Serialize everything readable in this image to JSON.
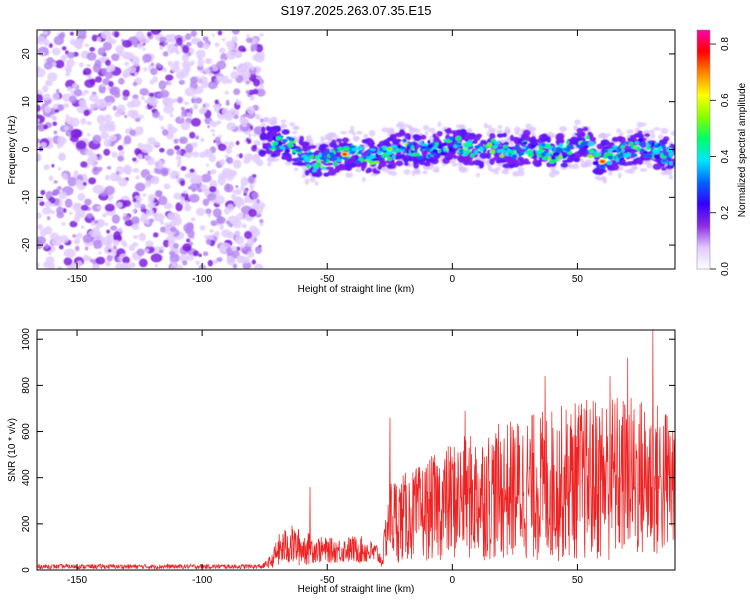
{
  "title": "S197.2025.263.07.35.E15",
  "chart_data": [
    {
      "type": "heatmap",
      "xlabel": "Height of straight line (km)",
      "ylabel": "Frequency (Hz)",
      "xlim": [
        -166,
        89
      ],
      "ylim": [
        -25,
        25
      ],
      "xticks": [
        -150,
        -100,
        -50,
        0,
        50
      ],
      "yticks": [
        -20,
        -10,
        0,
        10,
        20
      ],
      "noise_region_x": [
        -166,
        -76
      ],
      "signal_region_x": [
        -76,
        89
      ],
      "signal_trace": {
        "x": [
          -76,
          -70,
          -65,
          -60,
          -55,
          -50,
          -45,
          -40,
          -35,
          -30,
          -25,
          -20,
          -15,
          -10,
          -5,
          0,
          5,
          10,
          15,
          20,
          25,
          30,
          35,
          40,
          45,
          50,
          54,
          56,
          58,
          60,
          65,
          70,
          75,
          80,
          85,
          89
        ],
        "y": [
          2,
          1.5,
          1,
          -1,
          -3,
          -2,
          -1,
          -0.5,
          -1.5,
          -1.5,
          -0.5,
          0.5,
          -0.5,
          0,
          0.5,
          1,
          0.5,
          -0.5,
          0.5,
          0,
          -0.5,
          0.5,
          0,
          -1,
          0,
          1,
          1.5,
          -1,
          -1.5,
          -2,
          -1,
          0,
          0.5,
          0,
          -1,
          -1.5
        ]
      },
      "peak_points": [
        {
          "x": -43,
          "y": -1
        },
        {
          "x": 60,
          "y": -2.5
        }
      ],
      "colorbar": {
        "label": "Normalized spectral amplitude",
        "range": [
          0,
          0.85
        ],
        "ticks": [
          "0.0",
          "0.2",
          "0.4",
          "0.6",
          "0.8"
        ],
        "tick_values": [
          0,
          0.2,
          0.4,
          0.6,
          0.8
        ],
        "colors": [
          "#ffffff",
          "#e0c8ff",
          "#8a2be2",
          "#3300ff",
          "#0066ff",
          "#00e5ff",
          "#00ff66",
          "#88ff00",
          "#ffff00",
          "#ff8800",
          "#ff0000",
          "#ff00aa"
        ]
      }
    },
    {
      "type": "line",
      "series_color": "#ee2222",
      "xlabel": "Height of straight line (km)",
      "ylabel": "SNR (10 * v/v)",
      "xlim": [
        -166,
        89
      ],
      "ylim": [
        0,
        1040
      ],
      "xticks": [
        -150,
        -100,
        -50,
        0,
        50
      ],
      "yticks": [
        0,
        200,
        400,
        600,
        800,
        1000
      ],
      "envelope": {
        "x": [
          -166,
          -100,
          -76,
          -72,
          -70,
          -65,
          -60,
          -55,
          -50,
          -45,
          -40,
          -35,
          -30,
          -28,
          -26,
          -25,
          -22,
          -15,
          -10,
          -5,
          0,
          5,
          10,
          15,
          20,
          25,
          30,
          35,
          40,
          45,
          50,
          55,
          60,
          65,
          70,
          75,
          80,
          85,
          89
        ],
        "mean": [
          15,
          15,
          15,
          40,
          80,
          110,
          95,
          90,
          85,
          85,
          90,
          85,
          70,
          35,
          200,
          230,
          220,
          240,
          260,
          280,
          300,
          310,
          320,
          330,
          340,
          350,
          360,
          360,
          370,
          380,
          390,
          390,
          400,
          400,
          400,
          400,
          390,
          380,
          380
        ],
        "spread": [
          10,
          10,
          10,
          30,
          70,
          90,
          80,
          60,
          55,
          55,
          60,
          60,
          45,
          25,
          150,
          180,
          190,
          200,
          220,
          240,
          260,
          270,
          280,
          290,
          300,
          310,
          320,
          330,
          340,
          340,
          350,
          360,
          370,
          370,
          360,
          360,
          350,
          340,
          330
        ]
      },
      "peaks": [
        {
          "x": -57,
          "y": 360
        },
        {
          "x": -25,
          "y": 660
        },
        {
          "x": 5,
          "y": 690
        },
        {
          "x": 37,
          "y": 840
        },
        {
          "x": 63,
          "y": 840
        },
        {
          "x": 70,
          "y": 920
        },
        {
          "x": 80,
          "y": 1040
        }
      ]
    }
  ]
}
